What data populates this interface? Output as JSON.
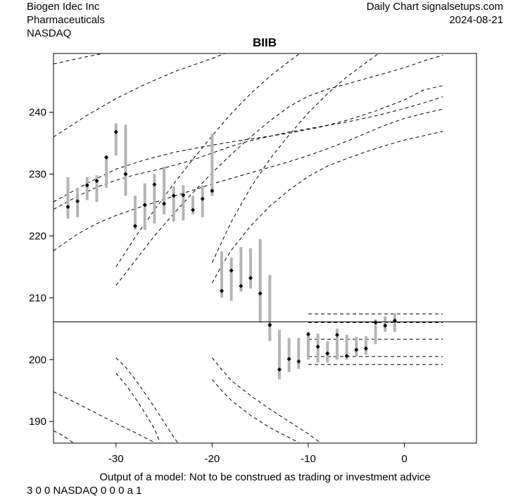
{
  "header": {
    "company": "Biogen Idec Inc",
    "sector": "Pharmaceuticals",
    "exchange": "NASDAQ",
    "source": "Daily Chart signalsetups.com",
    "date": "2024-08-21"
  },
  "footer": {
    "disclaimer": "Output of a model: Not to be construed as trading or investment advice",
    "code": "3 0 0 NASDAQ 0 0 0 a 1"
  },
  "chart_data": {
    "type": "candlestick-range",
    "title": "BIIB",
    "xlim": [
      -36.5,
      7.5
    ],
    "ylim": [
      186.5,
      249.5
    ],
    "xticks": [
      -30,
      -20,
      -10,
      0
    ],
    "yticks": [
      190,
      200,
      210,
      220,
      230,
      240
    ],
    "colors": {
      "bar": "#b5b5b5",
      "line": "#000000",
      "background": "#ffffff"
    },
    "bars": [
      {
        "x": -35,
        "low": 222.8,
        "high": 229.5,
        "close": 224.7
      },
      {
        "x": -34,
        "low": 223.0,
        "high": 227.8,
        "close": 225.6
      },
      {
        "x": -33,
        "low": 225.8,
        "high": 229.5,
        "close": 228.2
      },
      {
        "x": -32,
        "low": 225.5,
        "high": 229.8,
        "close": 228.9
      },
      {
        "x": -31,
        "low": 227.8,
        "high": 233.0,
        "close": 232.7
      },
      {
        "x": -30,
        "low": 233.0,
        "high": 238.2,
        "close": 236.8
      },
      {
        "x": -29,
        "low": 226.5,
        "high": 238.0,
        "close": 230.0
      },
      {
        "x": -28,
        "low": 221.0,
        "high": 226.5,
        "close": 221.6
      },
      {
        "x": -27,
        "low": 221.0,
        "high": 228.5,
        "close": 225.0
      },
      {
        "x": -26,
        "low": 222.0,
        "high": 230.0,
        "close": 228.3
      },
      {
        "x": -25,
        "low": 223.5,
        "high": 231.2,
        "close": 225.2
      },
      {
        "x": -24,
        "low": 222.3,
        "high": 228.0,
        "close": 226.5
      },
      {
        "x": -23,
        "low": 222.5,
        "high": 228.2,
        "close": 226.6
      },
      {
        "x": -22,
        "low": 223.5,
        "high": 226.5,
        "close": 224.2
      },
      {
        "x": -21,
        "low": 223.0,
        "high": 228.2,
        "close": 226.0
      },
      {
        "x": -20,
        "low": 226.5,
        "high": 236.5,
        "close": 227.3
      },
      {
        "x": -19,
        "low": 210.0,
        "high": 217.5,
        "close": 211.1
      },
      {
        "x": -18,
        "low": 209.5,
        "high": 216.5,
        "close": 214.4
      },
      {
        "x": -17,
        "low": 211.0,
        "high": 218.2,
        "close": 211.9
      },
      {
        "x": -16,
        "low": 211.5,
        "high": 218.0,
        "close": 213.2
      },
      {
        "x": -15,
        "low": 206.0,
        "high": 219.5,
        "close": 210.7
      },
      {
        "x": -14,
        "low": 203.0,
        "high": 213.7,
        "close": 205.6
      },
      {
        "x": -13,
        "low": 196.8,
        "high": 204.8,
        "close": 198.4
      },
      {
        "x": -12,
        "low": 198.0,
        "high": 203.5,
        "close": 200.1
      },
      {
        "x": -11,
        "low": 198.5,
        "high": 203.5,
        "close": 199.7
      },
      {
        "x": -10,
        "low": 200.0,
        "high": 204.5,
        "close": 204.1
      },
      {
        "x": -9,
        "low": 199.5,
        "high": 204.2,
        "close": 202.1
      },
      {
        "x": -8,
        "low": 199.5,
        "high": 203.0,
        "close": 201.0
      },
      {
        "x": -7,
        "low": 200.0,
        "high": 205.0,
        "close": 204.0
      },
      {
        "x": -6,
        "low": 200.0,
        "high": 204.0,
        "close": 200.6
      },
      {
        "x": -5,
        "low": 200.5,
        "high": 203.7,
        "close": 201.6
      },
      {
        "x": -4,
        "low": 200.8,
        "high": 203.8,
        "close": 201.8
      },
      {
        "x": -3,
        "low": 202.5,
        "high": 206.5,
        "close": 206.0
      },
      {
        "x": -2,
        "low": 204.5,
        "high": 207.0,
        "close": 205.5
      },
      {
        "x": -1,
        "low": 204.5,
        "high": 207.5,
        "close": 206.3
      }
    ],
    "hline": 206.1,
    "dashed_curves": [
      {
        "points": [
          [
            -36.5,
            247.8
          ],
          [
            -33,
            249.0
          ],
          [
            -31,
            249.6
          ]
        ]
      },
      {
        "points": [
          [
            -36.5,
            236.0
          ],
          [
            -33,
            239.5
          ],
          [
            -30,
            242.2
          ],
          [
            -27,
            244.5
          ],
          [
            -24,
            246.5
          ],
          [
            -20,
            248.7
          ],
          [
            -18.5,
            249.6
          ]
        ]
      },
      {
        "points": [
          [
            -36.5,
            225.5
          ],
          [
            -33,
            228.5
          ],
          [
            -30,
            230.8
          ],
          [
            -27,
            232.3
          ],
          [
            -24,
            233.5
          ],
          [
            -21,
            234.4
          ],
          [
            -18,
            235.2
          ],
          [
            -15,
            235.9
          ],
          [
            -12,
            236.6
          ],
          [
            -9,
            237.5
          ],
          [
            -6,
            238.7
          ],
          [
            -3,
            240.2
          ],
          [
            0,
            242.0
          ],
          [
            2,
            243.6
          ],
          [
            4,
            244.3
          ]
        ]
      },
      {
        "points": [
          [
            -36.5,
            224.3
          ],
          [
            -34,
            226.4
          ],
          [
            -32,
            227.9
          ],
          [
            -30,
            229.0
          ],
          [
            -28,
            229.9
          ],
          [
            -26,
            230.6
          ],
          [
            -24,
            231.4
          ],
          [
            -22,
            232.3
          ],
          [
            -20,
            233.4
          ],
          [
            -18,
            234.5
          ],
          [
            -16,
            235.4
          ],
          [
            -14,
            236.1
          ],
          [
            -12,
            236.8
          ],
          [
            -9,
            237.6
          ],
          [
            -6,
            238.4
          ],
          [
            -3,
            239.4
          ],
          [
            0,
            240.6
          ],
          [
            2,
            241.5
          ],
          [
            4,
            242.5
          ]
        ]
      },
      {
        "points": [
          [
            -36.5,
            217.6
          ],
          [
            -34,
            220.3
          ],
          [
            -32,
            222.0
          ],
          [
            -30,
            223.3
          ],
          [
            -28,
            224.4
          ],
          [
            -26,
            225.4
          ],
          [
            -24,
            226.4
          ],
          [
            -22,
            227.4
          ],
          [
            -20,
            228.4
          ],
          [
            -18,
            229.3
          ],
          [
            -16,
            230.2
          ],
          [
            -14,
            231.1
          ],
          [
            -12,
            232.0
          ],
          [
            -10,
            233.0
          ],
          [
            -8,
            234.1
          ],
          [
            -6,
            235.3
          ],
          [
            -4,
            236.6
          ],
          [
            -2,
            237.9
          ],
          [
            0,
            239.0
          ],
          [
            2,
            239.8
          ],
          [
            4,
            240.5
          ]
        ]
      },
      {
        "points": [
          [
            -30,
            215.0
          ],
          [
            -28,
            219.8
          ],
          [
            -26,
            224.2
          ],
          [
            -24,
            228.4
          ],
          [
            -22,
            232.4
          ],
          [
            -20,
            236.2
          ],
          [
            -18,
            239.8
          ],
          [
            -16,
            243.0
          ],
          [
            -14,
            245.8
          ],
          [
            -12,
            248.2
          ],
          [
            -10.8,
            249.6
          ]
        ]
      },
      {
        "points": [
          [
            -30,
            212.0
          ],
          [
            -28,
            216.0
          ],
          [
            -26,
            220.0
          ],
          [
            -24,
            223.6
          ],
          [
            -22,
            227.0
          ],
          [
            -20,
            230.2
          ],
          [
            -18,
            233.2
          ],
          [
            -16,
            236.0
          ],
          [
            -14,
            238.6
          ],
          [
            -12,
            240.9
          ],
          [
            -10,
            242.6
          ],
          [
            -8,
            243.7
          ],
          [
            -5,
            245.0
          ],
          [
            -2,
            246.3
          ],
          [
            0,
            247.2
          ],
          [
            2,
            248.3
          ],
          [
            4,
            249.2
          ]
        ]
      },
      {
        "points": [
          [
            -20,
            215.7
          ],
          [
            -19,
            219.0
          ],
          [
            -18,
            222.3
          ],
          [
            -16,
            227.8
          ],
          [
            -14,
            232.4
          ],
          [
            -12,
            236.3
          ],
          [
            -10,
            239.9
          ],
          [
            -8,
            243.0
          ],
          [
            -6,
            245.7
          ],
          [
            -4,
            248.0
          ],
          [
            -2.6,
            249.6
          ]
        ]
      },
      {
        "points": [
          [
            -20,
            212.4
          ],
          [
            -19,
            215.2
          ],
          [
            -18,
            217.7
          ],
          [
            -16,
            221.6
          ],
          [
            -14,
            224.8
          ],
          [
            -12,
            227.4
          ],
          [
            -10,
            229.6
          ],
          [
            -8,
            231.3
          ],
          [
            -6,
            232.5
          ],
          [
            -4,
            233.6
          ],
          [
            -2,
            234.6
          ],
          [
            0,
            235.5
          ],
          [
            2,
            236.2
          ],
          [
            4,
            236.9
          ]
        ]
      },
      {
        "points": [
          [
            -36.5,
            194.8
          ],
          [
            -34,
            192.9
          ],
          [
            -32,
            191.3
          ],
          [
            -30,
            189.7
          ],
          [
            -28,
            188.2
          ],
          [
            -26,
            186.6
          ]
        ]
      },
      {
        "points": [
          [
            -36.5,
            188.5
          ],
          [
            -35.5,
            187.7
          ],
          [
            -34.5,
            186.6
          ]
        ]
      },
      {
        "points": [
          [
            -30,
            200.3
          ],
          [
            -29,
            198.8
          ],
          [
            -28,
            196.8
          ],
          [
            -27,
            194.6
          ],
          [
            -26,
            192.3
          ],
          [
            -25,
            189.9
          ],
          [
            -24,
            187.5
          ],
          [
            -23.6,
            186.6
          ]
        ]
      },
      {
        "points": [
          [
            -30,
            197.8
          ],
          [
            -29,
            196.0
          ],
          [
            -28,
            193.8
          ],
          [
            -27,
            191.4
          ],
          [
            -26,
            188.8
          ],
          [
            -25.4,
            186.6
          ]
        ]
      },
      {
        "points": [
          [
            -20,
            200.3
          ],
          [
            -19,
            198.4
          ],
          [
            -18,
            196.6
          ],
          [
            -16,
            194.2
          ],
          [
            -14,
            192.0
          ],
          [
            -12,
            190.0
          ],
          [
            -10,
            188.0
          ],
          [
            -8.8,
            186.6
          ]
        ]
      },
      {
        "points": [
          [
            -20,
            196.8
          ],
          [
            -19,
            195.0
          ],
          [
            -18,
            193.4
          ],
          [
            -16,
            191.0
          ],
          [
            -14,
            189.0
          ],
          [
            -12,
            187.4
          ],
          [
            -11,
            186.6
          ]
        ]
      },
      {
        "points": [
          [
            -10,
            207.4
          ],
          [
            4,
            207.4
          ]
        ]
      },
      {
        "points": [
          [
            -10,
            206.0
          ],
          [
            4,
            206.0
          ]
        ]
      },
      {
        "points": [
          [
            -10,
            203.3
          ],
          [
            4,
            203.3
          ]
        ]
      },
      {
        "points": [
          [
            -10,
            200.5
          ],
          [
            4,
            200.5
          ]
        ]
      },
      {
        "points": [
          [
            -10,
            199.2
          ],
          [
            4,
            199.2
          ]
        ]
      }
    ]
  }
}
